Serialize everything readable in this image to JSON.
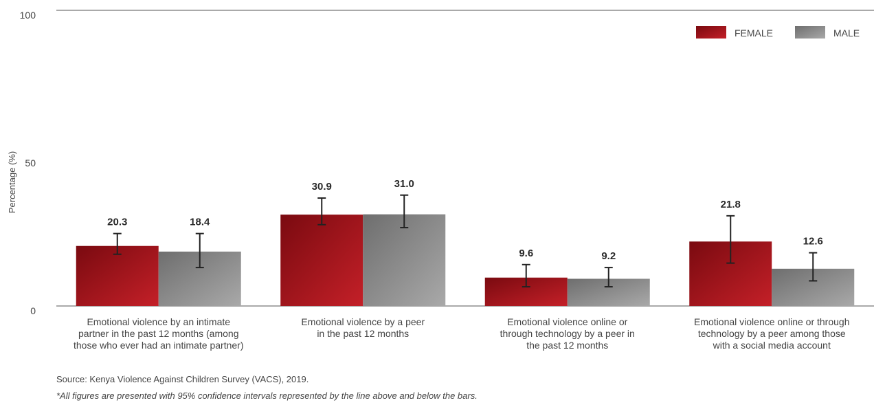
{
  "chart_data": {
    "type": "bar",
    "ylabel": "Percentage (%)",
    "ylim": [
      0,
      100
    ],
    "yticks": [
      "0",
      "50",
      "100"
    ],
    "categories": [
      "Emotional violence by an intimate partner in the past 12 months (among those who ever had an intimate partner)",
      "Emotional violence by a peer in the past 12 months",
      "Emotional violence online or through technology by a peer in the past 12 months",
      "Emotional violence online or through technology by a peer among those with a social media account"
    ],
    "category_lines": [
      [
        "Emotional violence by an intimate",
        "partner in the past 12 months (among",
        "those who ever had an intimate partner)"
      ],
      [
        "Emotional violence by a peer",
        "in the past 12 months"
      ],
      [
        "Emotional violence online or",
        "through technology by a peer in",
        "the past 12 months"
      ],
      [
        "Emotional violence online or through",
        "technology by a peer among those",
        "with a social media account"
      ]
    ],
    "series": [
      {
        "name": "FEMALE",
        "color": "#a4141c",
        "values": [
          20.3,
          30.9,
          9.6,
          21.8
        ],
        "labels": [
          "20.3",
          "30.9",
          "9.6",
          "21.8"
        ],
        "ci_low": [
          17.5,
          27.5,
          6.5,
          14.5
        ],
        "ci_high": [
          24.5,
          36.5,
          14.0,
          30.5
        ]
      },
      {
        "name": "MALE",
        "color": "#8a8a8a",
        "values": [
          18.4,
          31.0,
          9.2,
          12.6
        ],
        "labels": [
          "18.4",
          "31.0",
          "9.2",
          "12.6"
        ],
        "ci_low": [
          13.0,
          26.5,
          6.5,
          8.5
        ],
        "ci_high": [
          24.5,
          37.5,
          13.0,
          18.0
        ]
      }
    ],
    "legend_position": "top-right",
    "grid": false
  },
  "notes": {
    "source": "Source: Kenya Violence Against Children Survey (VACS), 2019.",
    "footnote": "*All figures are presented with 95% confidence intervals represented by the line above and below the bars."
  }
}
